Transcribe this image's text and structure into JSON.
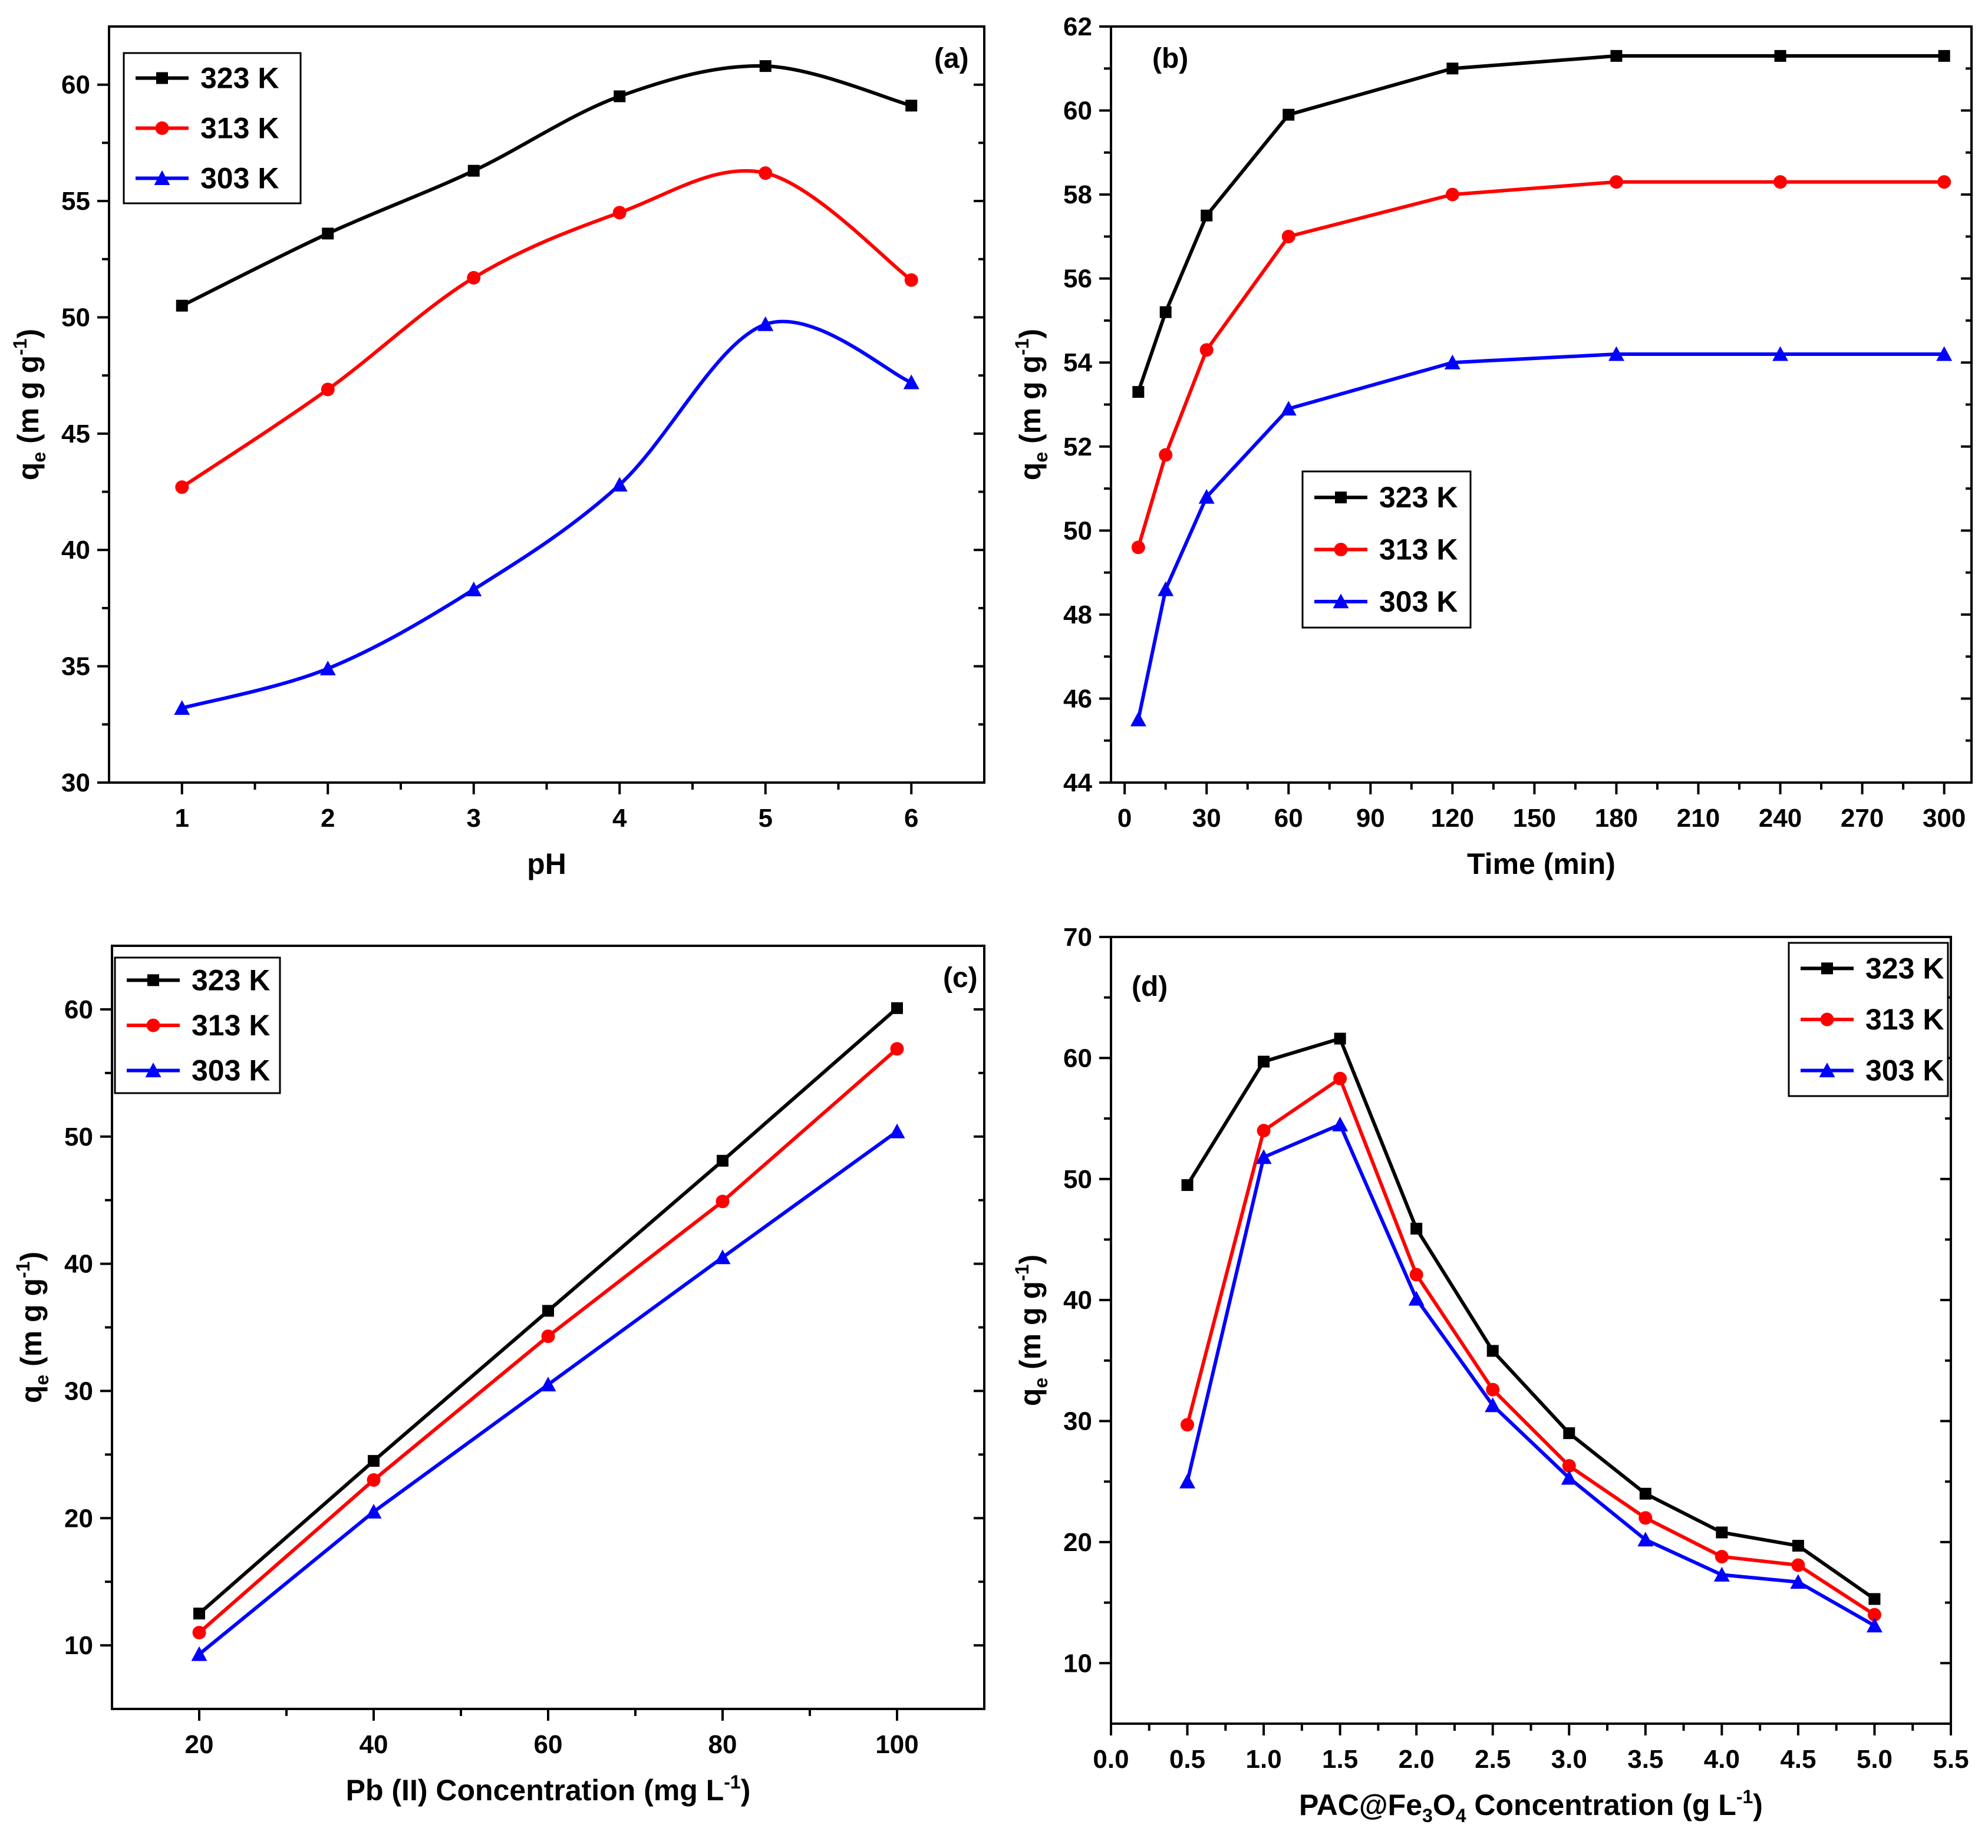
{
  "chart_data": [
    {
      "panel": "(a)",
      "type": "line",
      "xlabel": "pH",
      "ylabel": "q",
      "ylabel_sub": "e",
      "ylabel_units": "(m g g",
      "ylabel_sup": "-1",
      "ylabel_close": ")",
      "xlim": [
        0.5,
        6.5
      ],
      "ylim": [
        30,
        62.5
      ],
      "xticks": [
        1,
        2,
        3,
        4,
        5,
        6
      ],
      "xtick_labels": [
        "1",
        "2",
        "3",
        "4",
        "5",
        "6"
      ],
      "yticks": [
        30,
        35,
        40,
        45,
        50,
        55,
        60
      ],
      "ytick_labels": [
        "30",
        "35",
        "40",
        "45",
        "50",
        "55",
        "60"
      ],
      "legend": "top-left",
      "x": [
        1,
        2,
        3,
        4,
        5,
        6
      ],
      "series": [
        {
          "name": "323 K",
          "color": "#000000",
          "marker": "square",
          "values": [
            50.5,
            53.6,
            56.3,
            59.5,
            60.8,
            59.1
          ]
        },
        {
          "name": "313 K",
          "color": "#ff0000",
          "marker": "circle",
          "values": [
            42.7,
            46.9,
            51.7,
            54.5,
            56.2,
            51.6
          ]
        },
        {
          "name": "303 K",
          "color": "#0000ff",
          "marker": "triangle",
          "values": [
            33.2,
            34.9,
            38.3,
            42.8,
            49.7,
            47.2
          ]
        }
      ]
    },
    {
      "panel": "(b)",
      "type": "line",
      "xlabel": "Time (min)",
      "ylabel": "q",
      "ylabel_sub": "e",
      "ylabel_units": "(m g g",
      "ylabel_sup": "-1",
      "ylabel_close": ")",
      "xlim": [
        -5,
        310
      ],
      "ylim": [
        44,
        62
      ],
      "xticks": [
        0,
        30,
        60,
        90,
        120,
        150,
        180,
        210,
        240,
        270,
        300
      ],
      "xtick_labels": [
        "0",
        "30",
        "60",
        "90",
        "120",
        "150",
        "180",
        "210",
        "240",
        "270",
        "300"
      ],
      "yticks": [
        44,
        46,
        48,
        50,
        52,
        54,
        56,
        58,
        60,
        62
      ],
      "ytick_labels": [
        "44",
        "46",
        "48",
        "50",
        "52",
        "54",
        "56",
        "58",
        "60",
        "62"
      ],
      "legend": "center-left",
      "x": [
        5,
        15,
        30,
        60,
        120,
        180,
        240,
        300
      ],
      "series": [
        {
          "name": "323 K",
          "color": "#000000",
          "marker": "square",
          "values": [
            53.3,
            55.2,
            57.5,
            59.9,
            61.0,
            61.3,
            61.3,
            61.3
          ]
        },
        {
          "name": "313 K",
          "color": "#ff0000",
          "marker": "circle",
          "values": [
            49.6,
            51.8,
            54.3,
            57.0,
            58.0,
            58.3,
            58.3,
            58.3
          ]
        },
        {
          "name": "303 K",
          "color": "#0000ff",
          "marker": "triangle",
          "values": [
            45.5,
            48.6,
            50.8,
            52.9,
            54.0,
            54.2,
            54.2,
            54.2
          ]
        }
      ]
    },
    {
      "panel": "(c)",
      "type": "line",
      "xlabel_pre": "Pb (II) Concentration (mg L",
      "xlabel_sup": "-1",
      "xlabel_post": ")",
      "ylabel": "q",
      "ylabel_sub": "e",
      "ylabel_units": "(m g g",
      "ylabel_sup": "-1",
      "ylabel_close": ")",
      "xlim": [
        10,
        110
      ],
      "ylim": [
        5,
        65
      ],
      "xticks": [
        20,
        40,
        60,
        80,
        100
      ],
      "xtick_labels": [
        "20",
        "40",
        "60",
        "80",
        "100"
      ],
      "yticks": [
        10,
        20,
        30,
        40,
        50,
        60
      ],
      "ytick_labels": [
        "10",
        "20",
        "30",
        "40",
        "50",
        "60"
      ],
      "legend": "top-left",
      "x": [
        20,
        40,
        60,
        80,
        100
      ],
      "series": [
        {
          "name": "323 K",
          "color": "#000000",
          "marker": "square",
          "values": [
            12.5,
            24.5,
            36.3,
            48.1,
            60.1
          ]
        },
        {
          "name": "313 K",
          "color": "#ff0000",
          "marker": "circle",
          "values": [
            11.0,
            23.0,
            34.3,
            44.9,
            56.9
          ]
        },
        {
          "name": "303 K",
          "color": "#0000ff",
          "marker": "triangle",
          "values": [
            9.3,
            20.5,
            30.5,
            40.5,
            50.4
          ]
        }
      ]
    },
    {
      "panel": "(d)",
      "type": "line",
      "xlabel_pre": "PAC@Fe",
      "xlabel_sub1": "3",
      "xlabel_mid": "O",
      "xlabel_sub2": "4",
      "xlabel_post": " Concentration (g L",
      "xlabel_sup": "-1",
      "xlabel_close": ")",
      "ylabel": "q",
      "ylabel_sub": "e",
      "ylabel_units": "(m g g",
      "ylabel_sup": "-1",
      "ylabel_close": ")",
      "xlim": [
        0,
        5.5
      ],
      "ylim": [
        5,
        70
      ],
      "xticks": [
        0,
        0.5,
        1,
        1.5,
        2,
        2.5,
        3,
        3.5,
        4,
        4.5,
        5,
        5.5
      ],
      "xtick_labels": [
        "0.0",
        "0.5",
        "1.0",
        "1.5",
        "2.0",
        "2.5",
        "3.0",
        "3.5",
        "4.0",
        "4.5",
        "5.0",
        "5.5"
      ],
      "yticks": [
        10,
        20,
        30,
        40,
        50,
        60,
        70
      ],
      "ytick_labels": [
        "10",
        "20",
        "30",
        "40",
        "50",
        "60",
        "70"
      ],
      "legend": "top-right",
      "x": [
        0.5,
        1.0,
        1.5,
        2.0,
        2.5,
        3.0,
        3.5,
        4.0,
        4.5,
        5.0
      ],
      "series": [
        {
          "name": "323 K",
          "color": "#000000",
          "marker": "square",
          "values": [
            49.5,
            59.7,
            61.6,
            45.9,
            35.8,
            29.0,
            24.0,
            20.8,
            19.7,
            15.3
          ]
        },
        {
          "name": "313 K",
          "color": "#ff0000",
          "marker": "circle",
          "values": [
            29.7,
            54.0,
            58.3,
            42.1,
            32.6,
            26.3,
            22.0,
            18.8,
            18.1,
            14.0
          ]
        },
        {
          "name": "303 K",
          "color": "#0000ff",
          "marker": "triangle",
          "values": [
            25.0,
            51.8,
            54.5,
            40.1,
            31.3,
            25.3,
            20.2,
            17.3,
            16.7,
            13.1
          ]
        }
      ]
    }
  ]
}
